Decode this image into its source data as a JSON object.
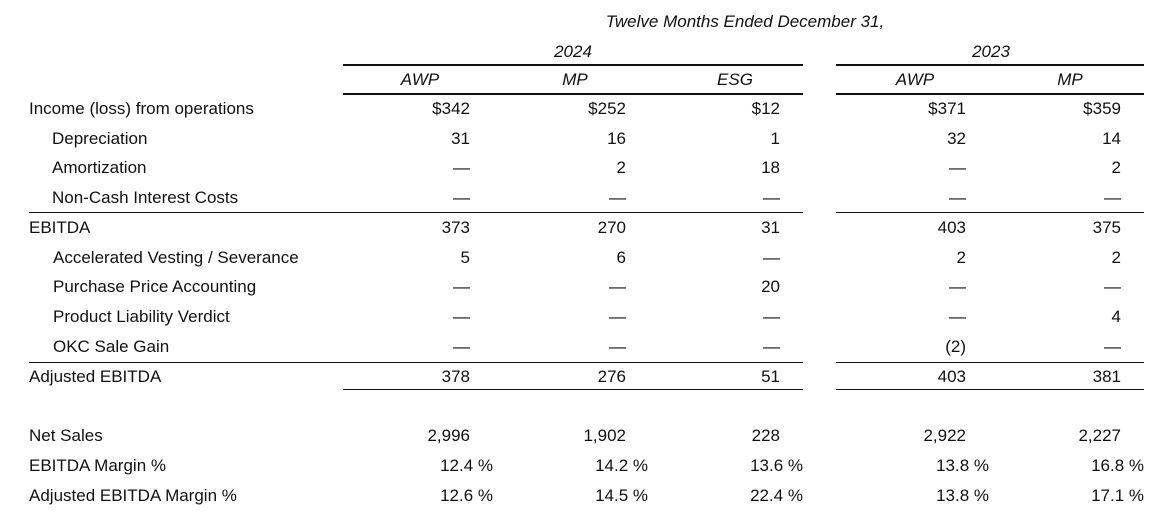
{
  "header": {
    "period_title": "Twelve Months Ended December 31,",
    "years": [
      "2024",
      "2023"
    ],
    "columns": [
      "AWP",
      "MP",
      "ESG",
      "AWP",
      "MP"
    ]
  },
  "rows": [
    {
      "label": "Income (loss) from operations",
      "values": [
        "$342",
        "$252",
        "$12",
        "$371",
        "$359"
      ]
    },
    {
      "label": "Depreciation",
      "values": [
        "31",
        "16",
        "1",
        "32",
        "14"
      ]
    },
    {
      "label": "Amortization",
      "values": [
        "—",
        "2",
        "18",
        "—",
        "2"
      ]
    },
    {
      "label": "Non-Cash Interest Costs",
      "values": [
        "—",
        "—",
        "—",
        "—",
        "—"
      ]
    },
    {
      "label": "EBITDA",
      "values": [
        "373",
        "270",
        "31",
        "403",
        "375"
      ]
    },
    {
      "label": "Accelerated Vesting / Severance",
      "values": [
        "5",
        "6",
        "—",
        "2",
        "2"
      ]
    },
    {
      "label": "Purchase Price Accounting",
      "values": [
        "—",
        "—",
        "20",
        "—",
        "—"
      ]
    },
    {
      "label": "Product Liability Verdict",
      "values": [
        "—",
        "—",
        "—",
        "—",
        "4"
      ]
    },
    {
      "label": "OKC Sale Gain",
      "values": [
        "—",
        "—",
        "—",
        "(2)",
        "—"
      ]
    },
    {
      "label": "Adjusted EBITDA",
      "values": [
        "378",
        "276",
        "51",
        "403",
        "381"
      ]
    },
    {
      "label": "Net Sales",
      "values": [
        "2,996",
        "1,902",
        "228",
        "2,922",
        "2,227"
      ]
    },
    {
      "label": "EBITDA Margin %",
      "values": [
        "12.4 %",
        "14.2 %",
        "13.6 %",
        "13.8 %",
        "16.8 %"
      ]
    },
    {
      "label": "Adjusted EBITDA Margin %",
      "values": [
        "12.6 %",
        "14.5 %",
        "22.4 %",
        "13.8 %",
        "17.1 %"
      ]
    }
  ]
}
